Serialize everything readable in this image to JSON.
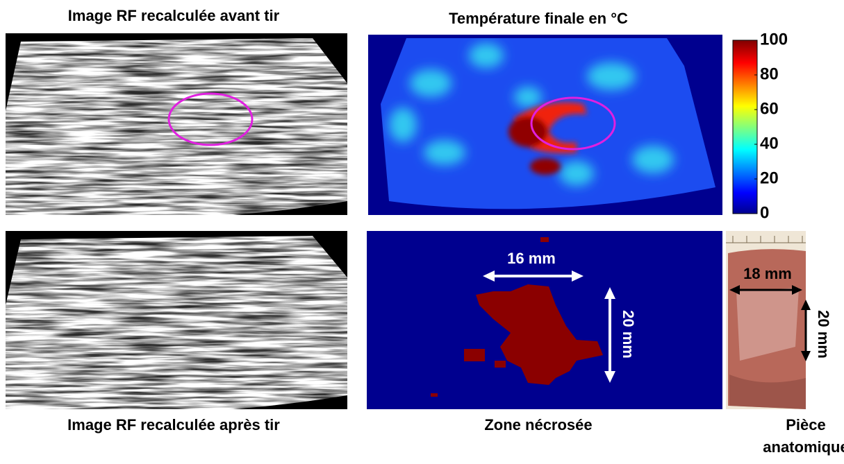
{
  "panels": {
    "rf_before": {
      "title": "Image RF recalculée avant tir"
    },
    "temperature": {
      "title": "Température finale en °C",
      "colorbar": {
        "lim": [
          0,
          100
        ],
        "ticks": [
          0,
          20,
          40,
          60,
          80,
          100
        ]
      }
    },
    "rf_after": {
      "title": "Image RF recalculée après tir"
    },
    "necrosis": {
      "title": "Zone nécrosée",
      "width_label": "16 mm",
      "height_label": "20 mm"
    },
    "specimen": {
      "title_lines": [
        "Pièce",
        "anatomique"
      ],
      "width_label": "18 mm",
      "height_label": "20 mm"
    }
  }
}
